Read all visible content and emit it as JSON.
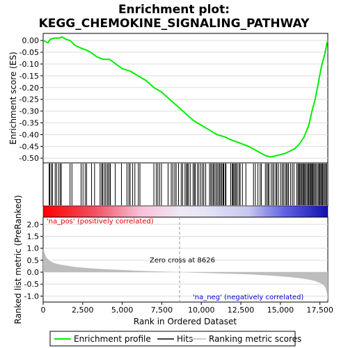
{
  "chart_data": {
    "type": "line",
    "title_line1": "Enrichment plot:",
    "title_line2": "KEGG_CHEMOKINE_SIGNALING_PATHWAY",
    "xlabel": "Rank in Ordered Dataset",
    "ylabel_top": "Enrichment score (ES)",
    "ylabel_bottom": "Ranked list metric (PreRanked)",
    "x_max": 18000,
    "xlim": [
      0,
      18000
    ],
    "xticks": [
      0,
      2500,
      5000,
      7500,
      10000,
      12500,
      15000,
      17500
    ],
    "xtick_labels": [
      "0",
      "2,500",
      "5,000",
      "7,500",
      "10,000",
      "12,500",
      "15,000",
      "17,500"
    ],
    "es_ylim": [
      -0.52,
      0.03
    ],
    "es_yticks": [
      0.0,
      -0.05,
      -0.1,
      -0.15,
      -0.2,
      -0.25,
      -0.3,
      -0.35,
      -0.4,
      -0.45,
      -0.5
    ],
    "es_ytick_labels": [
      "0.00",
      "-0.05",
      "-0.10",
      "-0.15",
      "-0.20",
      "-0.25",
      "-0.30",
      "-0.35",
      "-0.40",
      "-0.45",
      "-0.50"
    ],
    "es_curve": {
      "x": [
        0,
        300,
        450,
        700,
        1000,
        1200,
        1450,
        1700,
        2000,
        2300,
        2700,
        3000,
        3400,
        3800,
        4200,
        4600,
        5000,
        5500,
        6000,
        6500,
        7000,
        7500,
        8000,
        8500,
        9000,
        9500,
        10000,
        10500,
        11000,
        11500,
        11800,
        12200,
        12600,
        13000,
        13400,
        13800,
        14100,
        14400,
        14700,
        15000,
        15300,
        15600,
        15900,
        16200,
        16500,
        16800,
        17000,
        17200,
        17400,
        17600,
        17800,
        17950,
        18000
      ],
      "y": [
        0.0,
        -0.01,
        0.005,
        0.01,
        0.01,
        0.015,
        0.005,
        0.0,
        -0.02,
        -0.03,
        -0.04,
        -0.05,
        -0.07,
        -0.08,
        -0.08,
        -0.1,
        -0.12,
        -0.13,
        -0.15,
        -0.17,
        -0.2,
        -0.22,
        -0.25,
        -0.28,
        -0.31,
        -0.34,
        -0.36,
        -0.38,
        -0.4,
        -0.41,
        -0.42,
        -0.43,
        -0.44,
        -0.45,
        -0.465,
        -0.48,
        -0.49,
        -0.495,
        -0.49,
        -0.485,
        -0.48,
        -0.47,
        -0.46,
        -0.44,
        -0.41,
        -0.36,
        -0.3,
        -0.25,
        -0.18,
        -0.11,
        -0.06,
        -0.01,
        0.0
      ]
    },
    "hits": [
      380,
      420,
      520,
      590,
      760,
      850,
      980,
      1080,
      1150,
      1700,
      1820,
      2400,
      2520,
      2660,
      2750,
      3060,
      3250,
      3600,
      3700,
      3760,
      3860,
      3950,
      4050,
      4120,
      4220,
      4250,
      4560,
      4950,
      5300,
      5420,
      5500,
      5660,
      5800,
      6020,
      6120,
      7000,
      7150,
      7250,
      7360,
      7480,
      7900,
      8100,
      8200,
      8320,
      8410,
      8560,
      8730,
      8820,
      8970,
      9060,
      9120,
      9190,
      9300,
      9480,
      9560,
      9620,
      9760,
      9850,
      9970,
      10080,
      10160,
      10280,
      10520,
      10600,
      10680,
      10760,
      10830,
      10920,
      11000,
      11080,
      11160,
      11230,
      11300,
      11380,
      11420,
      11520,
      11560,
      11860,
      11960,
      12000,
      12060,
      12140,
      12200,
      12280,
      12390,
      12460,
      12600,
      12820,
      13300,
      13420,
      13580,
      13720,
      13800,
      14050,
      14140,
      14220,
      14280,
      14420,
      14520,
      14600,
      14720,
      14780,
      14880,
      15020,
      15120,
      15200,
      15300,
      15380,
      15450,
      15520,
      15650,
      15760,
      15860,
      16030,
      16110,
      16170,
      16230,
      16290,
      16360,
      16420,
      16480,
      16540,
      16600,
      16680,
      16750,
      16800,
      16860,
      16920,
      16980,
      17030,
      17080,
      17150,
      17220,
      17290,
      17380,
      17440,
      17500,
      17560,
      17620,
      17680,
      17720,
      17800,
      17870,
      17920
    ],
    "metric_ylim": [
      -1.25,
      2.3
    ],
    "metric_yticks": [
      2.0,
      1.5,
      1.0,
      0.5,
      0.0,
      -0.5,
      -1.0
    ],
    "metric_ytick_labels": [
      "2.0",
      "1.5",
      "1.0",
      "0.5",
      "0.0",
      "-0.5",
      "-1.0"
    ],
    "metric_curve": {
      "x": [
        0,
        80,
        200,
        400,
        700,
        1000,
        1500,
        2000,
        3000,
        4000,
        5000,
        6000,
        7000,
        8000,
        8626,
        9500,
        10500,
        11500,
        12500,
        13500,
        14500,
        15500,
        16200,
        16800,
        17200,
        17500,
        17700,
        17850,
        17950,
        18000
      ],
      "y": [
        0.98,
        0.82,
        0.62,
        0.48,
        0.38,
        0.33,
        0.27,
        0.22,
        0.16,
        0.12,
        0.09,
        0.06,
        0.04,
        0.015,
        0.0,
        -0.02,
        -0.04,
        -0.06,
        -0.08,
        -0.11,
        -0.15,
        -0.2,
        -0.25,
        -0.31,
        -0.37,
        -0.45,
        -0.52,
        -0.65,
        -0.9,
        -1.2
      ]
    },
    "zero_cross": 8626,
    "zero_cross_label": "Zero cross at 8626",
    "pos_label": "'na_pos' (positively correlated)",
    "neg_label": "'na_neg' (negatively correlated)",
    "legend": [
      "Enrichment profile",
      "Hits",
      "Ranking metric scores"
    ],
    "colors": {
      "es_line": "#00ee00",
      "hit_line": "#000000",
      "metric_fill": "#bdbdbd",
      "pos_text": "#dd0000",
      "neg_text": "#0000cc",
      "grid": "#dddddd"
    }
  }
}
